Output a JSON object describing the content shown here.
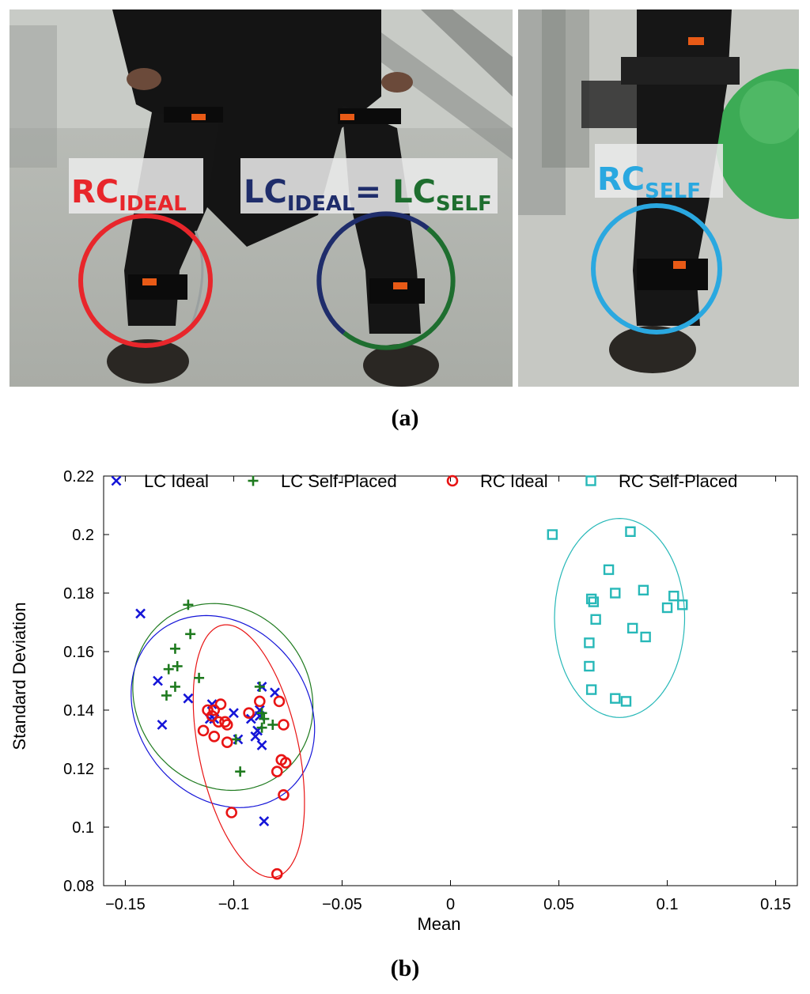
{
  "photos": {
    "left_labels": [
      {
        "main": "RC",
        "sub": "IDEAL",
        "color": "#e8262b"
      },
      {
        "main": "LC",
        "sub": "IDEAL",
        "color": "#1f2d6b"
      },
      {
        "main": "=",
        "sub": "",
        "color": "#1f2d6b"
      },
      {
        "main": "LC",
        "sub": "SELF",
        "color": "#1e6e2f"
      }
    ],
    "right_label": {
      "main": "RC",
      "sub": "SELF",
      "color": "#2aa8e0"
    },
    "circle_colors": {
      "rc_ideal": "#e8262b",
      "lc_ideal": "#1f2d6b",
      "lc_self": "#1e6e2f",
      "rc_self": "#2aa8e0"
    }
  },
  "panel_labels": {
    "a": "(a)",
    "b": "(b)"
  },
  "chart_data": {
    "type": "scatter",
    "xlabel": "Mean",
    "ylabel": "Standard Deviation",
    "xlim": [
      -0.16,
      0.16
    ],
    "ylim": [
      0.08,
      0.22
    ],
    "xticks": [
      -0.15,
      -0.1,
      -0.05,
      0,
      0.05,
      0.1,
      0.15
    ],
    "xtick_labels": [
      "−0.15",
      "−0.1",
      "−0.05",
      "0",
      "0.05",
      "0.1",
      "0.15"
    ],
    "yticks": [
      0.08,
      0.1,
      0.12,
      0.14,
      0.16,
      0.18,
      0.2,
      0.22
    ],
    "ytick_labels": [
      "0.08",
      "0.1",
      "0.12",
      "0.14",
      "0.16",
      "0.18",
      "0.2",
      "0.22"
    ],
    "grid": false,
    "legend_position": "top",
    "series": [
      {
        "name": "LC Ideal",
        "marker": "x",
        "color": "#1515d8",
        "points": [
          [
            -0.143,
            0.173
          ],
          [
            -0.135,
            0.15
          ],
          [
            -0.133,
            0.135
          ],
          [
            -0.121,
            0.144
          ],
          [
            -0.11,
            0.142
          ],
          [
            -0.111,
            0.137
          ],
          [
            -0.109,
            0.137
          ],
          [
            -0.1,
            0.139
          ],
          [
            -0.098,
            0.13
          ],
          [
            -0.092,
            0.137
          ],
          [
            -0.09,
            0.131
          ],
          [
            -0.089,
            0.133
          ],
          [
            -0.088,
            0.14
          ],
          [
            -0.088,
            0.138
          ],
          [
            -0.087,
            0.128
          ],
          [
            -0.087,
            0.148
          ],
          [
            -0.086,
            0.102
          ],
          [
            -0.081,
            0.146
          ]
        ]
      },
      {
        "name": "LC Self-Placed",
        "marker": "+",
        "color": "#1e7a1e",
        "points": [
          [
            -0.121,
            0.176
          ],
          [
            -0.12,
            0.166
          ],
          [
            -0.127,
            0.161
          ],
          [
            -0.126,
            0.155
          ],
          [
            -0.13,
            0.154
          ],
          [
            -0.127,
            0.148
          ],
          [
            -0.131,
            0.145
          ],
          [
            -0.116,
            0.151
          ],
          [
            -0.099,
            0.13
          ],
          [
            -0.097,
            0.119
          ],
          [
            -0.088,
            0.148
          ],
          [
            -0.087,
            0.139
          ],
          [
            -0.086,
            0.137
          ],
          [
            -0.087,
            0.134
          ],
          [
            -0.082,
            0.135
          ]
        ]
      },
      {
        "name": "RC Ideal",
        "marker": "o",
        "color": "#e81414",
        "points": [
          [
            -0.106,
            0.142
          ],
          [
            -0.112,
            0.14
          ],
          [
            -0.109,
            0.14
          ],
          [
            -0.11,
            0.138
          ],
          [
            -0.107,
            0.136
          ],
          [
            -0.104,
            0.136
          ],
          [
            -0.103,
            0.135
          ],
          [
            -0.114,
            0.133
          ],
          [
            -0.109,
            0.131
          ],
          [
            -0.103,
            0.129
          ],
          [
            -0.093,
            0.139
          ],
          [
            -0.088,
            0.143
          ],
          [
            -0.079,
            0.143
          ],
          [
            -0.077,
            0.135
          ],
          [
            -0.078,
            0.123
          ],
          [
            -0.076,
            0.122
          ],
          [
            -0.08,
            0.119
          ],
          [
            -0.077,
            0.111
          ],
          [
            -0.101,
            0.105
          ],
          [
            -0.08,
            0.084
          ]
        ]
      },
      {
        "name": "RC Self-Placed",
        "marker": "s",
        "color": "#27b8b8",
        "points": [
          [
            0.047,
            0.2
          ],
          [
            0.083,
            0.201
          ],
          [
            0.073,
            0.188
          ],
          [
            0.065,
            0.178
          ],
          [
            0.066,
            0.177
          ],
          [
            0.076,
            0.18
          ],
          [
            0.089,
            0.181
          ],
          [
            0.103,
            0.179
          ],
          [
            0.107,
            0.176
          ],
          [
            0.1,
            0.175
          ],
          [
            0.067,
            0.171
          ],
          [
            0.084,
            0.168
          ],
          [
            0.09,
            0.165
          ],
          [
            0.064,
            0.163
          ],
          [
            0.064,
            0.155
          ],
          [
            0.065,
            0.147
          ],
          [
            0.076,
            0.144
          ],
          [
            0.081,
            0.143
          ]
        ]
      }
    ],
    "ellipses": [
      {
        "series": "LC Self-Placed",
        "color": "#1e7a1e",
        "center": [
          -0.105,
          0.1445
        ],
        "rx": 0.04,
        "ry": 0.033,
        "angle": -35
      },
      {
        "series": "LC Ideal",
        "color": "#1515d8",
        "center": [
          -0.105,
          0.1395
        ],
        "rx": 0.039,
        "ry": 0.035,
        "angle": -38
      },
      {
        "series": "RC Ideal",
        "color": "#e81414",
        "center": [
          -0.093,
          0.126
        ],
        "rx": 0.023,
        "ry": 0.044,
        "angle": -12
      },
      {
        "series": "RC Self-Placed",
        "color": "#27b8b8",
        "center": [
          0.078,
          0.1715
        ],
        "rx": 0.03,
        "ry": 0.034,
        "angle": 0
      }
    ]
  }
}
